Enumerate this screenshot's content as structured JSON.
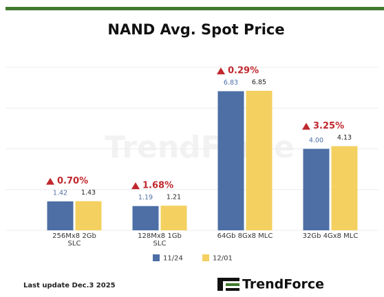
{
  "chart_data": {
    "type": "bar",
    "title": "NAND Avg. Spot Price",
    "categories": [
      "256Mx8 2Gb\nSLC",
      "128Mx8 1Gb\nSLC",
      "64Gb 8Gx8 MLC",
      "32Gb 4Gx8 MLC"
    ],
    "series": [
      {
        "name": "11/24",
        "color": "#4d6fa5",
        "values": [
          1.42,
          1.19,
          6.83,
          4.0
        ],
        "value_labels": [
          "1.42",
          "1.19",
          "6.83",
          "4.00"
        ]
      },
      {
        "name": "12/01",
        "color": "#f3d060",
        "values": [
          1.43,
          1.21,
          6.85,
          4.13
        ],
        "value_labels": [
          "1.43",
          "1.21",
          "6.85",
          "4.13"
        ]
      }
    ],
    "change_labels": [
      "0.70%",
      "1.68%",
      "0.29%",
      "3.25%"
    ],
    "ylim": [
      0,
      8
    ],
    "yticks": [
      0,
      2,
      4,
      6,
      8
    ],
    "grid": true,
    "footer": "Last update Dec.3  2025",
    "brand": "TrendForce"
  }
}
